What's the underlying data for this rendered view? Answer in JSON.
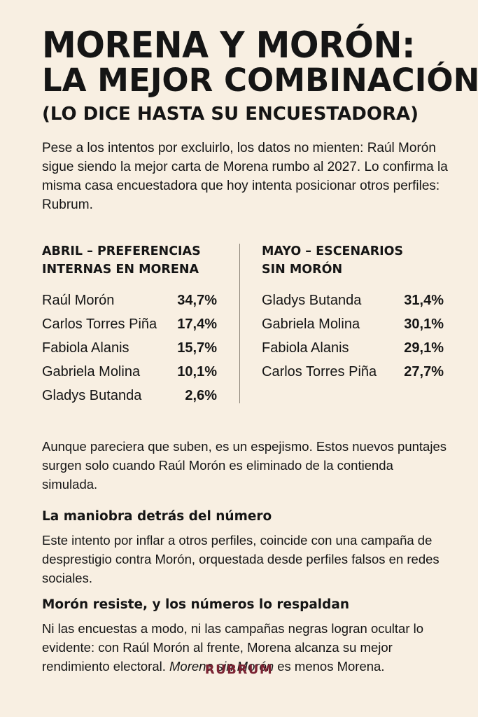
{
  "headline": {
    "line1": "MORENA Y MORÓN:",
    "line2": "LA MEJOR COMBINACIÓN",
    "line3": "(LO DICE HASTA SU ENCUESTADORA)"
  },
  "intro": "Pese a los intentos por excluirlo, los datos no mienten: Raúl Morón sigue siendo la mejor carta de Morena rumbo al 2027. Lo confirma la misma casa encuestadora que hoy intenta posicionar otros perfiles: Rubrum.",
  "april": {
    "title_line1": "ABRIL – PREFERENCIAS",
    "title_line2": "INTERNAS EN MORENA",
    "rows": [
      {
        "name": "Raúl Morón",
        "pct": "34,7%"
      },
      {
        "name": "Carlos Torres Piña",
        "pct": "17,4%"
      },
      {
        "name": "Fabiola Alanis",
        "pct": "15,7%"
      },
      {
        "name": "Gabriela Molina",
        "pct": "10,1%"
      },
      {
        "name": "Gladys Butanda",
        "pct": "2,6%"
      }
    ]
  },
  "may": {
    "title_line1": "MAYO – ESCENARIOS",
    "title_line2": "SIN MORÓN",
    "rows": [
      {
        "name": "Gladys Butanda",
        "pct": "31,4%"
      },
      {
        "name": "Gabriela Molina",
        "pct": "30,1%"
      },
      {
        "name": "Fabiola Alanis",
        "pct": "29,1%"
      },
      {
        "name": "Carlos Torres Piña",
        "pct": "27,7%"
      }
    ]
  },
  "paragraph1": "Aunque pareciera que suben, es un espejismo. Estos nuevos puntajes surgen solo cuando Raúl Morón es eliminado de la contienda simulada.",
  "section2": {
    "heading": "La maniobra detrás del número",
    "body": "Este intento por inflar a otros perfiles, coincide con una campaña de desprestigio contra Morón, orquestada desde perfiles falsos en redes sociales."
  },
  "section3": {
    "heading": "Morón resiste, y los números lo respaldan",
    "body_start": "Ni las encuestas a modo, ni las campañas negras logran ocultar lo evidente: con Raúl Morón al frente, Morena alcanza su mejor rendimiento electoral. ",
    "body_emph": "Morena sin Morón",
    "body_end": " es menos Morena."
  },
  "footer": "RUBRUM"
}
